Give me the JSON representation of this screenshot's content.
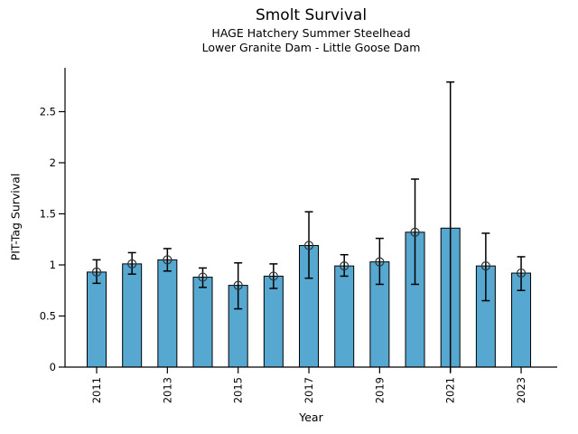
{
  "header": {
    "title": "Smolt Survival",
    "subtitle1": "HAGE Hatchery Summer Steelhead",
    "subtitle2": "Lower Granite Dam - Little Goose Dam"
  },
  "chart_data": {
    "type": "bar",
    "title": "Smolt Survival",
    "subtitle": [
      "HAGE Hatchery Summer Steelhead",
      "Lower Granite Dam - Little Goose Dam"
    ],
    "xlabel": "Year",
    "ylabel": "PIT-Tag Survival",
    "ylim": [
      0,
      2.93
    ],
    "yticks": [
      0,
      0.5,
      1,
      1.5,
      2,
      2.5
    ],
    "xtick_labels": [
      "2011",
      "2013",
      "2015",
      "2017",
      "2019",
      "2021",
      "2023"
    ],
    "legend": "none",
    "grid": false,
    "bar_color": "#56a8d0",
    "bar_edge_color": "#000000",
    "error_color": "#000000",
    "marker_edge_color": "#333333",
    "points": [
      {
        "year": "2011",
        "value": 0.93,
        "err_low": 0.82,
        "err_high": 1.05,
        "marker": true,
        "low_cap": true
      },
      {
        "year": "2012",
        "value": 1.01,
        "err_low": 0.91,
        "err_high": 1.12,
        "marker": true,
        "low_cap": true
      },
      {
        "year": "2013",
        "value": 1.05,
        "err_low": 0.94,
        "err_high": 1.16,
        "marker": true,
        "low_cap": true
      },
      {
        "year": "2014",
        "value": 0.88,
        "err_low": 0.78,
        "err_high": 0.97,
        "marker": true,
        "low_cap": true
      },
      {
        "year": "2015",
        "value": 0.8,
        "err_low": 0.57,
        "err_high": 1.02,
        "marker": true,
        "low_cap": true
      },
      {
        "year": "2016",
        "value": 0.89,
        "err_low": 0.77,
        "err_high": 1.01,
        "marker": true,
        "low_cap": true
      },
      {
        "year": "2017",
        "value": 1.19,
        "err_low": 0.87,
        "err_high": 1.52,
        "marker": true,
        "low_cap": true
      },
      {
        "year": "2018",
        "value": 0.99,
        "err_low": 0.89,
        "err_high": 1.1,
        "marker": true,
        "low_cap": true
      },
      {
        "year": "2019",
        "value": 1.03,
        "err_low": 0.81,
        "err_high": 1.26,
        "marker": true,
        "low_cap": true
      },
      {
        "year": "2020",
        "value": 1.32,
        "err_low": 0.81,
        "err_high": 1.84,
        "marker": true,
        "low_cap": true
      },
      {
        "year": "2021",
        "value": 1.36,
        "err_low": -0.05,
        "err_high": 2.79,
        "marker": false,
        "low_cap": false
      },
      {
        "year": "2022",
        "value": 0.99,
        "err_low": 0.65,
        "err_high": 1.31,
        "marker": true,
        "low_cap": true
      },
      {
        "year": "2023",
        "value": 0.92,
        "err_low": 0.75,
        "err_high": 1.08,
        "marker": true,
        "low_cap": true
      }
    ]
  }
}
